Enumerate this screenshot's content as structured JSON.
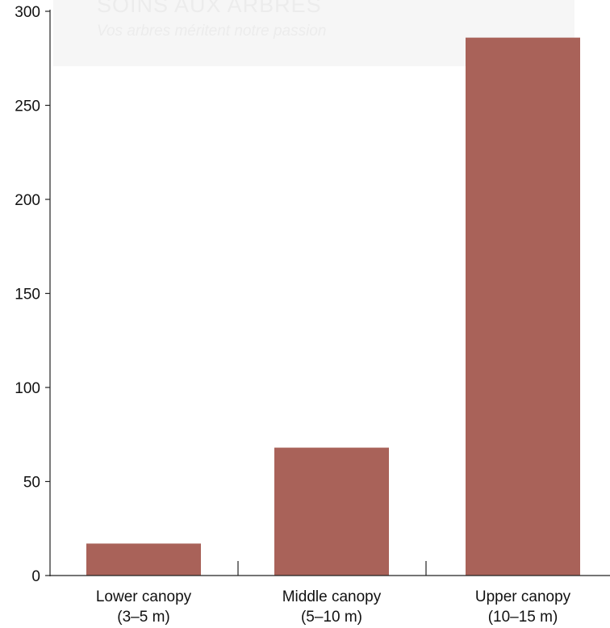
{
  "watermark": {
    "title": "SOINS AUX ARBRES",
    "subtitle": "Vos arbres méritent notre passion"
  },
  "chart_data": {
    "type": "bar",
    "categories": [
      [
        "Lower canopy",
        "(3–5 m)"
      ],
      [
        "Middle canopy",
        "(5–10 m)"
      ],
      [
        "Upper canopy",
        "(10–15 m)"
      ]
    ],
    "values": [
      17,
      68,
      286
    ],
    "ylim": [
      0,
      300
    ],
    "yticks": [
      0,
      50,
      100,
      150,
      200,
      250,
      300
    ],
    "grid": false,
    "bar_color": "#a65d54",
    "title": "",
    "xlabel": "",
    "ylabel": ""
  }
}
